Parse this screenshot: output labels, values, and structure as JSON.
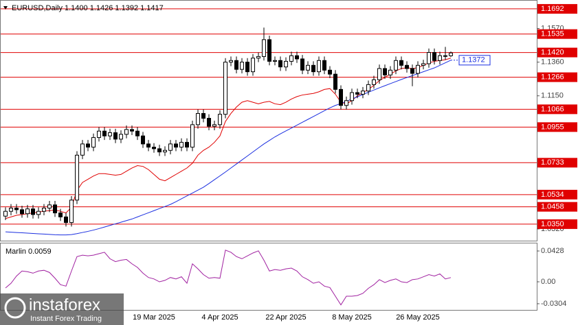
{
  "chart_data": [
    {
      "type": "candlestick",
      "title": "EURUSD,Daily  1.1400 1.1426 1.1392 1.1417",
      "categories": [
        null,
        null,
        null,
        null,
        null,
        null,
        null,
        null,
        null,
        null,
        null,
        null,
        null,
        null,
        null,
        null,
        null,
        null,
        null,
        null,
        null,
        null,
        null,
        null,
        null,
        null,
        null,
        "19 Mar 2025",
        null,
        null,
        null,
        null,
        null,
        null,
        null,
        null,
        null,
        null,
        null,
        "4 Apr 2025",
        null,
        null,
        null,
        null,
        null,
        null,
        null,
        null,
        null,
        null,
        null,
        "22 Apr 2025",
        null,
        null,
        null,
        null,
        null,
        null,
        null,
        null,
        null,
        null,
        null,
        "8 May 2025",
        null,
        null,
        null,
        null,
        null,
        null,
        null,
        null,
        null,
        null,
        null,
        "26 May 2025",
        null,
        null,
        null,
        null,
        null,
        null
      ],
      "open": [
        1.04,
        1.043,
        1.045,
        1.044,
        1.0415,
        1.0445,
        1.041,
        1.043,
        1.045,
        1.047,
        1.042,
        1.0395,
        1.036,
        1.05,
        1.078,
        1.085,
        1.083,
        1.089,
        1.093,
        1.09,
        1.092,
        1.088,
        1.091,
        1.094,
        1.093,
        1.09,
        1.085,
        1.083,
        1.082,
        1.08,
        1.081,
        1.085,
        1.083,
        1.086,
        1.083,
        1.097,
        1.104,
        1.101,
        1.096,
        1.097,
        1.1035,
        1.136,
        1.137,
        1.1315,
        1.136,
        1.13,
        1.1385,
        1.1395,
        1.15,
        1.1365,
        1.137,
        1.133,
        1.1365,
        1.14,
        1.138,
        1.131,
        1.134,
        1.13,
        1.137,
        1.131,
        1.1285,
        1.119,
        1.109,
        1.112,
        1.117,
        1.116,
        1.118,
        1.122,
        1.125,
        1.132,
        1.128,
        1.131,
        1.137,
        1.134,
        1.132,
        1.129,
        1.134,
        1.135,
        1.142,
        1.137,
        1.14,
        1.14
      ],
      "high": [
        1.0455,
        1.0475,
        1.0475,
        1.0465,
        1.047,
        1.047,
        1.0455,
        1.0475,
        1.0495,
        1.0495,
        1.0445,
        1.042,
        1.0525,
        1.0805,
        1.0875,
        1.0875,
        1.0915,
        1.0955,
        1.0955,
        1.0945,
        1.0945,
        1.0935,
        1.0965,
        1.0965,
        1.0955,
        1.0925,
        1.0875,
        1.0855,
        1.0845,
        1.0835,
        1.0875,
        1.0875,
        1.0885,
        1.0885,
        1.0995,
        1.1065,
        1.1065,
        1.1035,
        1.0995,
        1.106,
        1.1385,
        1.1395,
        1.1395,
        1.1385,
        1.1385,
        1.141,
        1.142,
        1.1575,
        1.1525,
        1.1395,
        1.1395,
        1.139,
        1.1425,
        1.1425,
        1.1405,
        1.1365,
        1.1365,
        1.1395,
        1.1395,
        1.1335,
        1.131,
        1.1215,
        1.1145,
        1.1195,
        1.1195,
        1.1205,
        1.1245,
        1.1275,
        1.1345,
        1.1345,
        1.1335,
        1.1395,
        1.1395,
        1.1365,
        1.1345,
        1.1365,
        1.1375,
        1.1445,
        1.1445,
        1.1425,
        1.1455,
        1.1426
      ],
      "low": [
        1.0375,
        1.0405,
        1.0415,
        1.039,
        1.039,
        1.0385,
        1.0385,
        1.0405,
        1.0425,
        1.0395,
        1.037,
        1.0335,
        1.0335,
        1.0475,
        1.0755,
        1.0805,
        1.0805,
        1.0865,
        1.0875,
        1.0875,
        1.0855,
        1.0855,
        1.0885,
        1.0905,
        1.0875,
        1.0825,
        1.0805,
        1.0795,
        1.0775,
        1.0775,
        1.0785,
        1.0805,
        1.0805,
        1.0805,
        1.0805,
        1.0945,
        1.0985,
        1.0935,
        1.0935,
        1.0945,
        1.101,
        1.1335,
        1.129,
        1.129,
        1.1275,
        1.1275,
        1.136,
        1.137,
        1.134,
        1.134,
        1.1305,
        1.1305,
        1.134,
        1.1355,
        1.1285,
        1.1285,
        1.1275,
        1.1275,
        1.1285,
        1.126,
        1.1165,
        1.1065,
        1.1065,
        1.1095,
        1.1135,
        1.1135,
        1.1155,
        1.1195,
        1.1225,
        1.1255,
        1.1255,
        1.1285,
        1.1315,
        1.1295,
        1.121,
        1.1265,
        1.1315,
        1.1325,
        1.1345,
        1.1345,
        1.1375,
        1.1392
      ],
      "close": [
        1.043,
        1.045,
        1.044,
        1.0415,
        1.0445,
        1.041,
        1.043,
        1.045,
        1.047,
        1.042,
        1.0395,
        1.036,
        1.05,
        1.078,
        1.085,
        1.083,
        1.089,
        1.093,
        1.09,
        1.092,
        1.088,
        1.091,
        1.094,
        1.093,
        1.09,
        1.085,
        1.083,
        1.082,
        1.08,
        1.081,
        1.085,
        1.083,
        1.086,
        1.083,
        1.097,
        1.104,
        1.101,
        1.096,
        1.097,
        1.1035,
        1.136,
        1.137,
        1.1315,
        1.136,
        1.13,
        1.1385,
        1.1395,
        1.15,
        1.1365,
        1.137,
        1.133,
        1.1365,
        1.14,
        1.138,
        1.131,
        1.134,
        1.13,
        1.137,
        1.131,
        1.1285,
        1.119,
        1.109,
        1.112,
        1.117,
        1.116,
        1.118,
        1.122,
        1.125,
        1.132,
        1.128,
        1.131,
        1.137,
        1.134,
        1.132,
        1.129,
        1.134,
        1.135,
        1.142,
        1.137,
        1.14,
        1.14,
        1.1417
      ],
      "series": [
        {
          "color": "#e00000",
          "values": [
            1.0385,
            1.0395,
            1.0405,
            1.041,
            1.0415,
            1.042,
            1.0425,
            1.043,
            1.0435,
            1.0438,
            1.043,
            1.042,
            1.0455,
            1.056,
            1.061,
            1.063,
            1.065,
            1.0665,
            1.0665,
            1.066,
            1.0655,
            1.066,
            1.068,
            1.07,
            1.0715,
            1.071,
            1.069,
            1.066,
            1.063,
            1.062,
            1.064,
            1.066,
            1.068,
            1.07,
            1.073,
            1.078,
            1.081,
            1.083,
            1.086,
            1.09,
            1.099,
            1.104,
            1.108,
            1.111,
            1.112,
            1.111,
            1.11,
            1.111,
            1.1115,
            1.11,
            1.1095,
            1.111,
            1.113,
            1.1145,
            1.1155,
            1.116,
            1.1165,
            1.1175,
            1.119,
            1.1195,
            1.116,
            1.111,
            1.11,
            1.112,
            1.115,
            1.117,
            1.119,
            1.1215,
            1.1245,
            1.1265,
            1.1285,
            1.1305,
            1.132,
            1.1325,
            1.132,
            1.1325,
            1.134,
            1.1355,
            1.1365,
            1.137,
            1.1375,
            1.1385
          ]
        },
        {
          "color": "#1a2ee0",
          "values": [
            1.0302,
            1.03,
            1.0298,
            1.0296,
            1.0294,
            1.0292,
            1.029,
            1.0288,
            1.0286,
            1.0284,
            1.0283,
            1.0283,
            1.0285,
            1.0291,
            1.0298,
            1.0305,
            1.0313,
            1.0322,
            1.0332,
            1.0342,
            1.0352,
            1.0362,
            1.0372,
            1.0382,
            1.0395,
            1.0408,
            1.0421,
            1.0434,
            1.0447,
            1.046,
            1.0473,
            1.049,
            1.0508,
            1.0526,
            1.0544,
            1.0562,
            1.058,
            1.0603,
            1.0627,
            1.0651,
            1.0675,
            1.07,
            1.0725,
            1.075,
            1.0775,
            1.08,
            1.0825,
            1.085,
            1.0872,
            1.0894,
            1.0913,
            1.0931,
            1.0949,
            1.0967,
            1.0985,
            1.1003,
            1.1021,
            1.1039,
            1.1057,
            1.1075,
            1.109,
            1.1102,
            1.1116,
            1.113,
            1.1144,
            1.1158,
            1.1172,
            1.1186,
            1.12,
            1.1213,
            1.1226,
            1.1239,
            1.1252,
            1.1264,
            1.1276,
            1.1288,
            1.13,
            1.1312,
            1.1324,
            1.134,
            1.1356,
            1.1372
          ]
        }
      ],
      "line_label": {
        "value": 1.1372,
        "label": "1.1372"
      },
      "levels_color": "#e00000",
      "levels": [
        {
          "value": 1.1692,
          "label": "1.1692"
        },
        {
          "value": 1.1535,
          "label": "1.1535"
        },
        {
          "value": 1.142,
          "label": "1.1420"
        },
        {
          "value": 1.1266,
          "label": "1.1266"
        },
        {
          "value": 1.1066,
          "label": "1.1066"
        },
        {
          "value": 1.0955,
          "label": "1.0955"
        },
        {
          "value": 1.0733,
          "label": "1.0733"
        },
        {
          "value": 1.0534,
          "label": "1.0534"
        },
        {
          "value": 1.0458,
          "label": "1.0458"
        },
        {
          "value": 1.035,
          "label": "1.0350"
        }
      ],
      "ylim": [
        1.0247,
        1.1743
      ],
      "yticks": [
        {
          "value": 1.157,
          "label": "1.1570"
        },
        {
          "value": 1.136,
          "label": "1.1360"
        },
        {
          "value": 1.115,
          "label": "1.1150"
        },
        {
          "value": 1.032,
          "label": "1.0320"
        }
      ]
    },
    {
      "type": "line",
      "title": "Marlin 0.0059",
      "color": "#a020a0",
      "values": [
        -0.0086,
        -0.002,
        0.008,
        0.015,
        0.014,
        0.012,
        0.015,
        0.016,
        0.013,
        0.005,
        -0.004,
        -0.006,
        0.015,
        0.035,
        0.037,
        0.036,
        0.037,
        0.039,
        0.041,
        0.032,
        0.028,
        0.03,
        0.031,
        0.025,
        0.02,
        0.012,
        0.006,
        0.004,
        0.0,
        0.002,
        0.006,
        0.004,
        0.007,
        -0.002,
        0.025,
        0.018,
        0.01,
        0.005,
        0.006,
        0.005,
        0.044,
        0.041,
        0.035,
        0.032,
        0.036,
        0.04,
        0.043,
        0.03,
        0.015,
        0.017,
        0.016,
        0.018,
        0.019,
        0.015,
        0.007,
        0.003,
        -0.002,
        0.0,
        -0.006,
        -0.008,
        -0.02,
        -0.032,
        -0.02,
        -0.02,
        -0.019,
        -0.016,
        -0.009,
        -0.004,
        0.003,
        -0.001,
        0.002,
        0.004,
        0.0,
        -0.001,
        0.003,
        0.004,
        0.007,
        0.01,
        0.008,
        0.011,
        0.004,
        0.0059
      ],
      "ylim": [
        -0.039,
        0.0533
      ],
      "yticks": [
        0.0428,
        {
          "value": 0,
          "label": "0.00"
        },
        -0.0304
      ]
    }
  ],
  "watermark": {
    "brand": "instaforex",
    "tagline": "Instant Forex Trading"
  }
}
